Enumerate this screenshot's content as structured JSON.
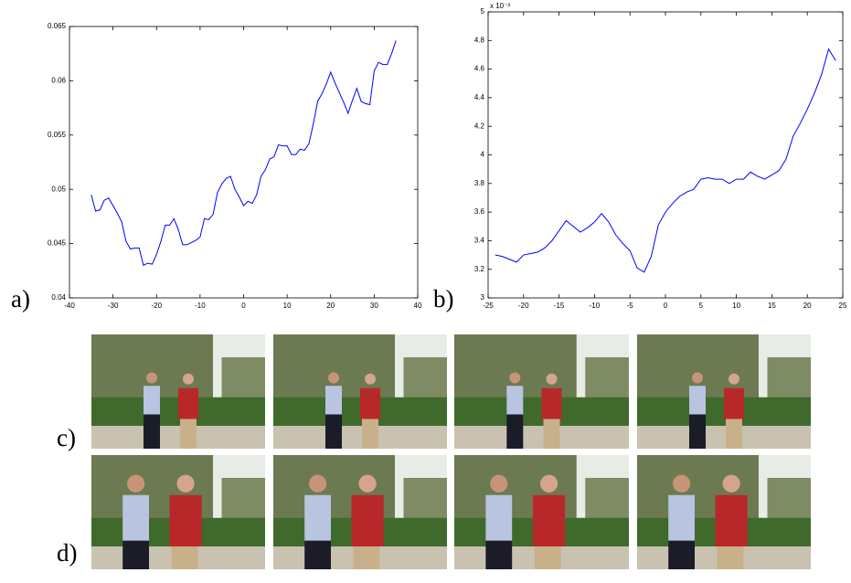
{
  "chart_data": [
    {
      "type": "line",
      "panel_label": "a)",
      "color": "#0000ff",
      "x": [
        -35,
        -34,
        -33,
        -32,
        -31,
        -30,
        -29,
        -28,
        -27,
        -26,
        -25,
        -24,
        -23,
        -22,
        -21,
        -20,
        -19,
        -18,
        -17,
        -16,
        -15,
        -14,
        -13,
        -12,
        -11,
        -10,
        -9,
        -8,
        -7,
        -6,
        -5,
        -4,
        -3,
        -2,
        -1,
        0,
        1,
        2,
        3,
        4,
        5,
        6,
        7,
        8,
        9,
        10,
        11,
        12,
        13,
        14,
        15,
        16,
        17,
        18,
        19,
        20,
        21,
        22,
        23,
        24,
        25,
        26,
        27,
        28,
        29,
        30,
        31,
        32,
        33,
        34,
        35
      ],
      "values": [
        0.0495,
        0.048,
        0.0481,
        0.049,
        0.0492,
        0.0485,
        0.0478,
        0.047,
        0.0452,
        0.0445,
        0.0446,
        0.0446,
        0.043,
        0.0432,
        0.0431,
        0.044,
        0.0452,
        0.0467,
        0.0467,
        0.0473,
        0.0463,
        0.0449,
        0.0449,
        0.0451,
        0.0453,
        0.0456,
        0.0473,
        0.0472,
        0.0477,
        0.0497,
        0.0505,
        0.051,
        0.0512,
        0.05,
        0.0493,
        0.0485,
        0.0489,
        0.0487,
        0.0495,
        0.0512,
        0.0518,
        0.0528,
        0.053,
        0.0541,
        0.054,
        0.054,
        0.0532,
        0.0532,
        0.0537,
        0.0536,
        0.0542,
        0.056,
        0.0581,
        0.0588,
        0.0597,
        0.0608,
        0.0598,
        0.0589,
        0.058,
        0.057,
        0.0582,
        0.0593,
        0.0581,
        0.0579,
        0.0578,
        0.0609,
        0.0617,
        0.0615,
        0.0615,
        0.0625,
        0.0637
      ],
      "xlim": [
        -40,
        40
      ],
      "xticks": [
        -40,
        -30,
        -20,
        -10,
        0,
        10,
        20,
        30,
        40
      ],
      "ylim": [
        0.04,
        0.065
      ],
      "yticks": [
        0.04,
        0.045,
        0.05,
        0.055,
        0.06,
        0.065
      ]
    },
    {
      "type": "line",
      "panel_label": "b)",
      "color": "#0000ff",
      "y_scale_label": "x 10⁻³",
      "x": [
        -24,
        -23,
        -22,
        -21,
        -20,
        -19,
        -18,
        -17,
        -16,
        -15,
        -14,
        -13,
        -12,
        -11,
        -10,
        -9,
        -8,
        -7,
        -6,
        -5,
        -4,
        -3,
        -2,
        -1,
        0,
        1,
        2,
        3,
        4,
        5,
        6,
        7,
        8,
        9,
        10,
        11,
        12,
        13,
        14,
        15,
        16,
        17,
        18,
        19,
        20,
        21,
        22,
        23,
        24
      ],
      "values": [
        3.3,
        3.29,
        3.27,
        3.25,
        3.3,
        3.31,
        3.32,
        3.35,
        3.4,
        3.47,
        3.54,
        3.5,
        3.46,
        3.49,
        3.53,
        3.59,
        3.53,
        3.44,
        3.38,
        3.33,
        3.21,
        3.18,
        3.29,
        3.51,
        3.6,
        3.66,
        3.71,
        3.74,
        3.76,
        3.83,
        3.84,
        3.83,
        3.83,
        3.8,
        3.83,
        3.83,
        3.88,
        3.85,
        3.83,
        3.86,
        3.89,
        3.97,
        4.13,
        4.22,
        4.32,
        4.43,
        4.56,
        4.74,
        4.66
      ],
      "xlim": [
        -25,
        25
      ],
      "xticks": [
        -25,
        -20,
        -15,
        -10,
        -5,
        0,
        5,
        10,
        15,
        20,
        25
      ],
      "ylim": [
        3,
        5
      ],
      "yticks": [
        3,
        3.2,
        3.4,
        3.6,
        3.8,
        4,
        4.2,
        4.4,
        4.6,
        4.8,
        5
      ]
    }
  ],
  "figures": [
    {
      "label": "c)"
    },
    {
      "label": "d)"
    }
  ]
}
